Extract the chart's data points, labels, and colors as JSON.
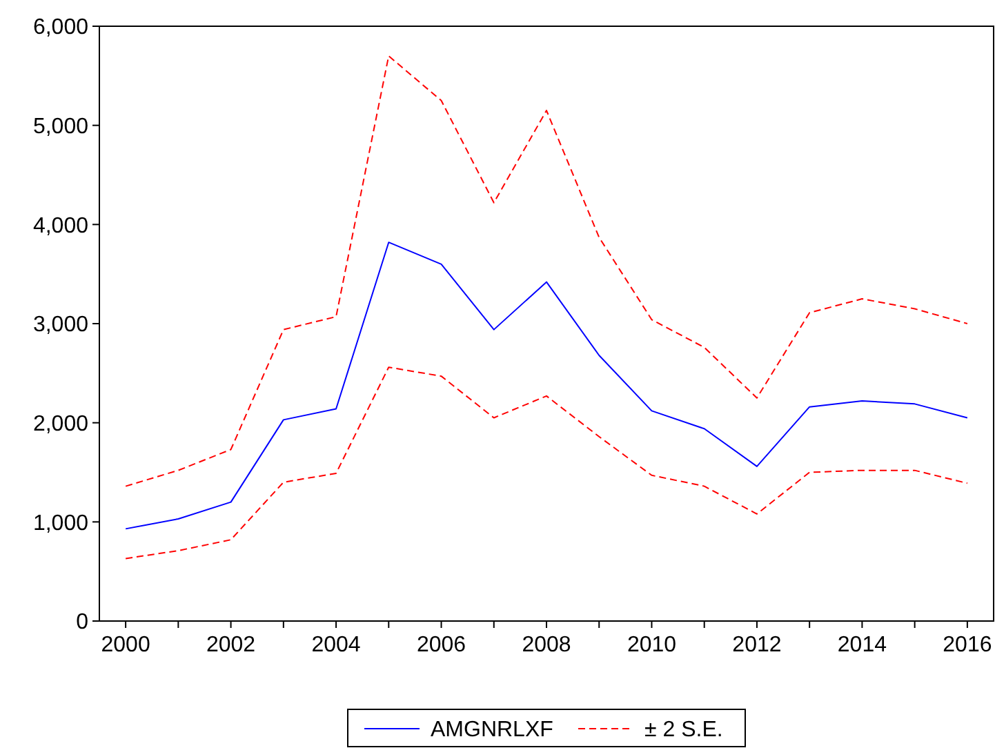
{
  "chart_data": {
    "type": "line",
    "x": [
      2000,
      2001,
      2002,
      2003,
      2004,
      2005,
      2006,
      2007,
      2008,
      2009,
      2010,
      2011,
      2012,
      2013,
      2014,
      2015,
      2016
    ],
    "series": [
      {
        "name": "AMGNRLXF",
        "color": "#0000ff",
        "line_style": "solid",
        "values": [
          930,
          1030,
          1200,
          2030,
          2140,
          3820,
          3600,
          2940,
          3420,
          2680,
          2120,
          1940,
          1560,
          2160,
          2220,
          2190,
          2050
        ]
      },
      {
        "name": "± 2 S.E.",
        "color": "#ff0000",
        "line_style": "dashed",
        "values": [
          1360,
          1520,
          1730,
          2940,
          3070,
          5700,
          5250,
          4220,
          5150,
          3870,
          3040,
          2760,
          2250,
          3110,
          3250,
          3150,
          3000
        ]
      },
      {
        "color": "#ff0000",
        "line_style": "dashed",
        "values": [
          630,
          710,
          820,
          1400,
          1490,
          2560,
          2470,
          2050,
          2270,
          1860,
          1470,
          1360,
          1080,
          1500,
          1520,
          1520,
          1390
        ]
      }
    ],
    "xlim": [
      1999.5,
      2016.5
    ],
    "xticks": [
      2000,
      {
        "value": 2001,
        "label": null
      },
      2002,
      {
        "value": 2003,
        "label": null
      },
      2004,
      {
        "value": 2005,
        "label": null
      },
      2006,
      {
        "value": 2007,
        "label": null
      },
      2008,
      {
        "value": 2009,
        "label": null
      },
      2010,
      {
        "value": 2011,
        "label": null
      },
      2012,
      {
        "value": 2013,
        "label": null
      },
      2014,
      {
        "value": 2015,
        "label": null
      },
      2016
    ],
    "ylim": [
      0,
      6000
    ],
    "yticks": [
      {
        "value": 0,
        "label": "0"
      },
      {
        "value": 1000,
        "label": "1,000"
      },
      {
        "value": 2000,
        "label": "2,000"
      },
      {
        "value": 3000,
        "label": "3,000"
      },
      {
        "value": 4000,
        "label": "4,000"
      },
      {
        "value": 5000,
        "label": "5,000"
      },
      {
        "value": 6000,
        "label": "6,000"
      }
    ],
    "grid": false,
    "legend": "bottom",
    "marker": "none"
  }
}
